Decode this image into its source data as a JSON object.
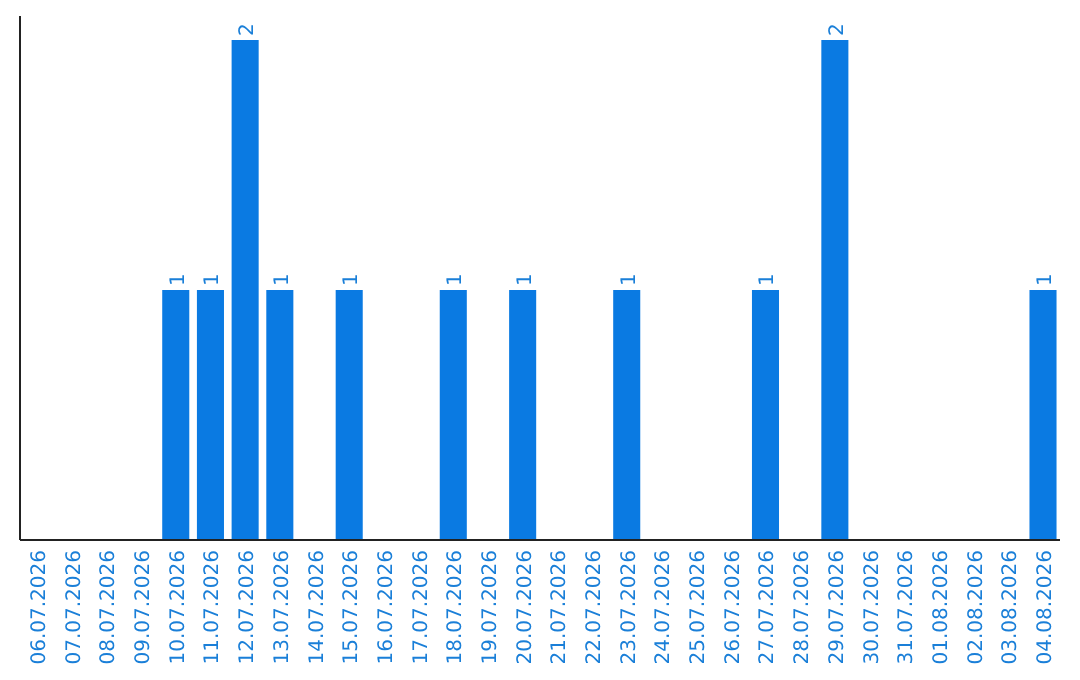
{
  "chart_data": {
    "type": "bar",
    "categories": [
      "06.07.2026",
      "07.07.2026",
      "08.07.2026",
      "09.07.2026",
      "10.07.2026",
      "11.07.2026",
      "12.07.2026",
      "13.07.2026",
      "14.07.2026",
      "15.07.2026",
      "16.07.2026",
      "17.07.2026",
      "18.07.2026",
      "19.07.2026",
      "20.07.2026",
      "21.07.2026",
      "22.07.2026",
      "23.07.2026",
      "24.07.2026",
      "25.07.2026",
      "26.07.2026",
      "27.07.2026",
      "28.07.2026",
      "29.07.2026",
      "30.07.2026",
      "31.07.2026",
      "01.08.2026",
      "02.08.2026",
      "03.08.2026",
      "04.08.2026"
    ],
    "values": [
      0,
      0,
      0,
      0,
      1,
      1,
      2,
      1,
      0,
      1,
      0,
      0,
      1,
      0,
      1,
      0,
      0,
      1,
      0,
      0,
      0,
      1,
      0,
      2,
      0,
      0,
      0,
      0,
      0,
      1
    ],
    "value_labels": [
      null,
      null,
      null,
      null,
      "1",
      "1",
      "2",
      "1",
      null,
      "1",
      null,
      null,
      "1",
      null,
      "1",
      null,
      null,
      "1",
      null,
      null,
      null,
      "1",
      null,
      "2",
      null,
      null,
      null,
      null,
      null,
      "1"
    ],
    "color": "#0a7ae2"
  }
}
